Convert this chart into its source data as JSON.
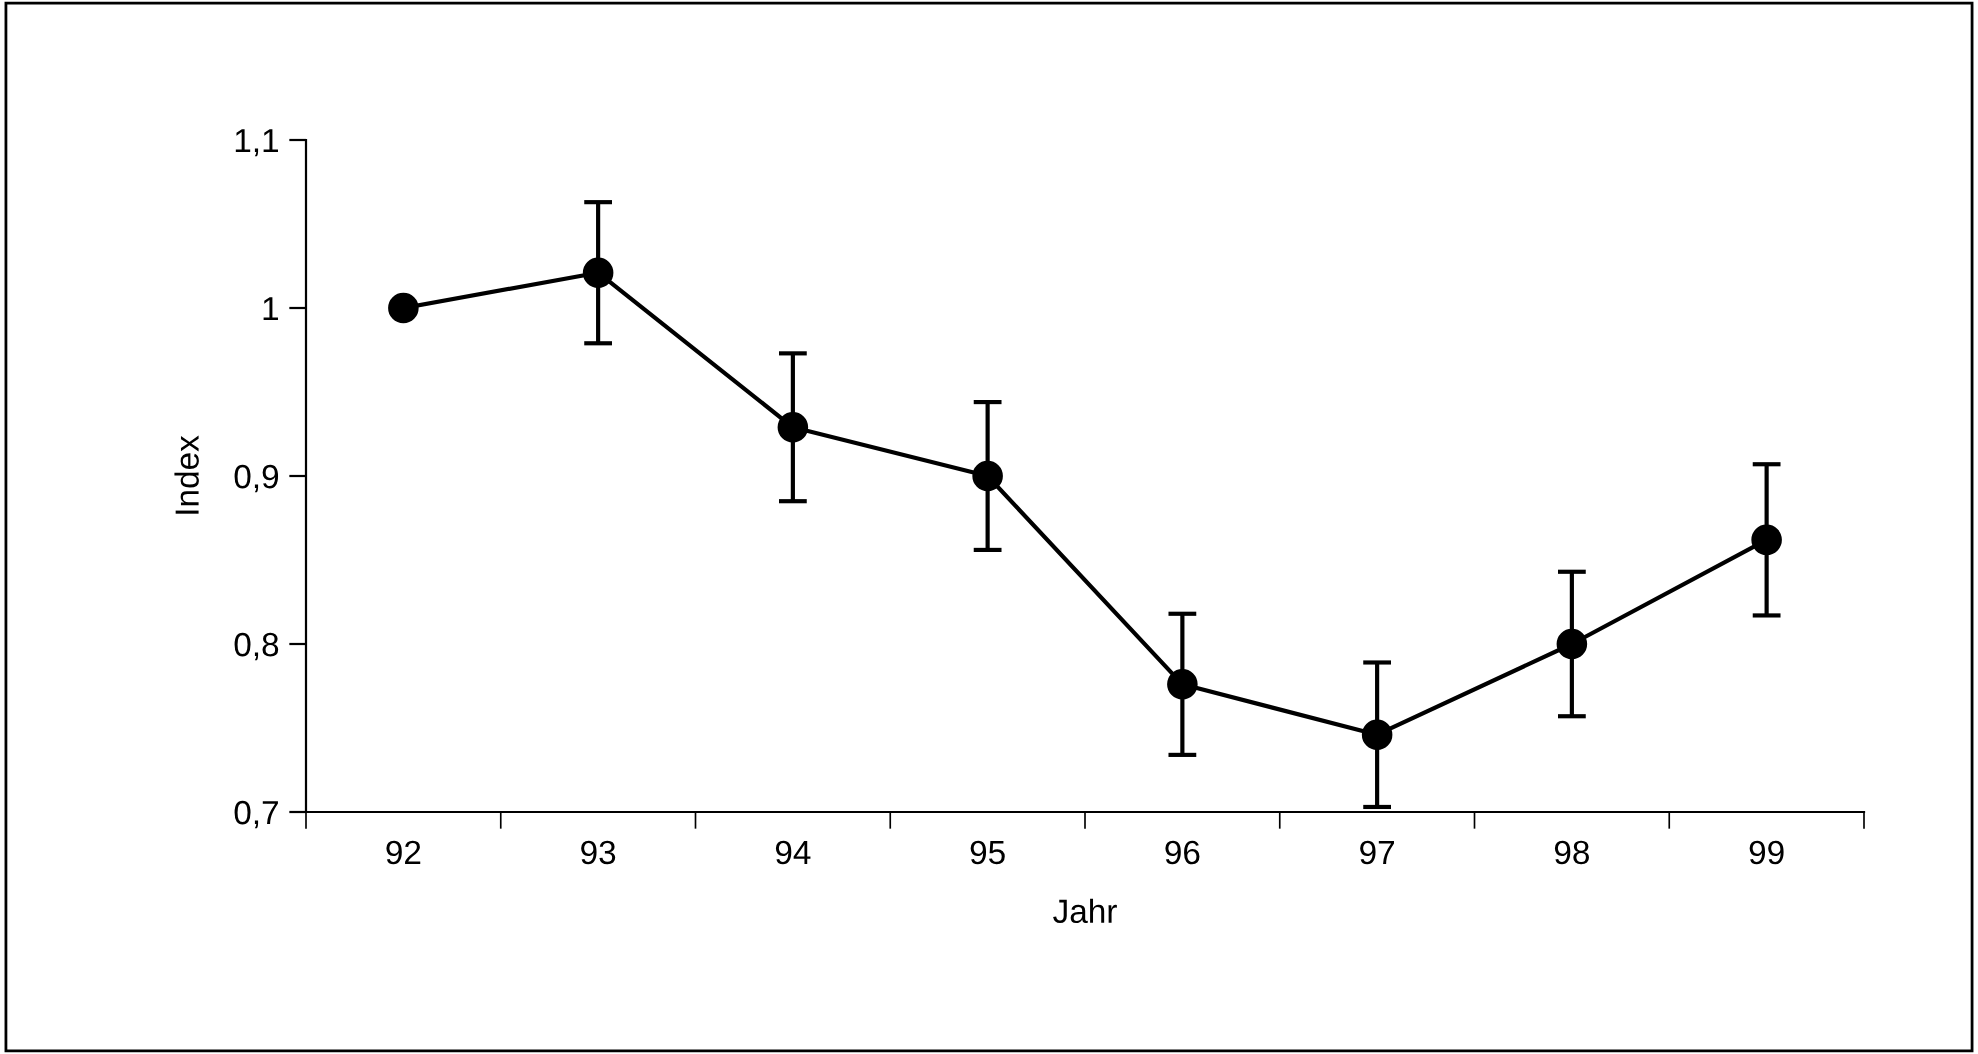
{
  "chart_data": {
    "type": "line",
    "xlabel": "Jahr",
    "ylabel": "Index",
    "categories": [
      "92",
      "93",
      "94",
      "95",
      "96",
      "97",
      "98",
      "99"
    ],
    "values": [
      1.0,
      1.021,
      0.929,
      0.9,
      0.776,
      0.746,
      0.8,
      0.862
    ],
    "errors": [
      null,
      0.042,
      0.044,
      0.044,
      0.042,
      0.043,
      0.043,
      0.045
    ],
    "color": "#000000",
    "marker": "circle",
    "line_style": "solid",
    "ylim": [
      0.7,
      1.1
    ],
    "yticks": [
      {
        "value": 0.7,
        "label": "0,7"
      },
      {
        "value": 0.8,
        "label": "0,8"
      },
      {
        "value": 0.9,
        "label": "0,9"
      },
      {
        "value": 1.0,
        "label": "1"
      },
      {
        "value": 1.1,
        "label": "1,1"
      }
    ],
    "grid": false,
    "legend": false
  }
}
